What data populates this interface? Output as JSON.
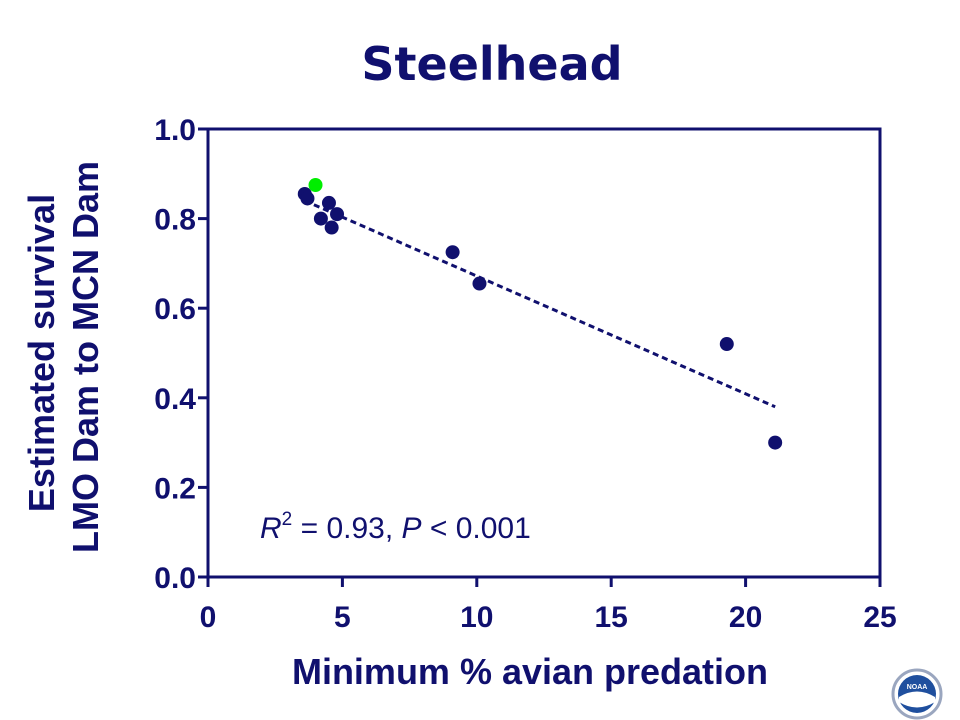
{
  "chart_data": {
    "type": "scatter",
    "title": "Steelhead",
    "xlabel": "Minimum % avian predation",
    "ylabel_lines": [
      "Estimated survival",
      "LMO Dam to MCN Dam"
    ],
    "xlim": [
      0,
      25
    ],
    "ylim": [
      0.0,
      1.0
    ],
    "x_ticks": [
      "0",
      "5",
      "10",
      "15",
      "20",
      "25"
    ],
    "y_ticks": [
      "0.0",
      "0.2",
      "0.4",
      "0.6",
      "0.8",
      "1.0"
    ],
    "grid": false,
    "series": [
      {
        "color": "#10106e",
        "points": [
          {
            "x": 3.6,
            "y": 0.855
          },
          {
            "x": 3.7,
            "y": 0.845
          },
          {
            "x": 4.2,
            "y": 0.8
          },
          {
            "x": 4.5,
            "y": 0.835
          },
          {
            "x": 4.6,
            "y": 0.78
          },
          {
            "x": 4.8,
            "y": 0.81
          },
          {
            "x": 9.1,
            "y": 0.725
          },
          {
            "x": 10.1,
            "y": 0.655
          },
          {
            "x": 19.3,
            "y": 0.52
          },
          {
            "x": 21.1,
            "y": 0.3
          }
        ]
      },
      {
        "color": "#00ee00",
        "points": [
          {
            "x": 4.0,
            "y": 0.875
          }
        ]
      }
    ],
    "trendline": {
      "x": [
        3.6,
        21.1
      ],
      "y": [
        0.84,
        0.38
      ],
      "style": "dashed",
      "color": "#10106e"
    },
    "annotation": {
      "r_letter": "R",
      "r_exponent": "2",
      "r_value_text": " = 0.93, ",
      "p_letter": "P",
      "p_value_text": " < 0.001"
    }
  },
  "logo": {
    "icon": "noaa-logo-icon",
    "text": "NOAA"
  }
}
